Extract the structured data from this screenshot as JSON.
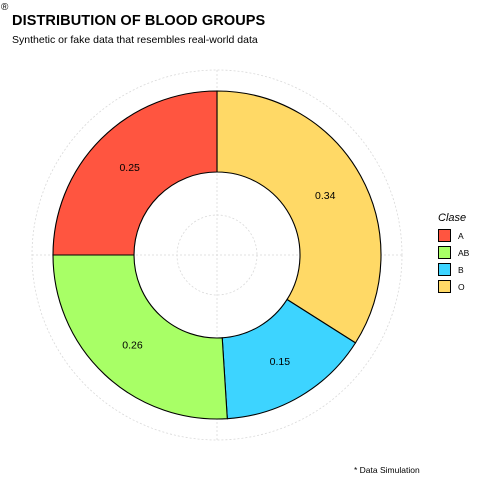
{
  "header": {
    "corner_mark": "®",
    "title": "DISTRIBUTION OF BLOOD GROUPS",
    "subtitle": "Synthetic or fake data that resembles real-world data",
    "caption": "* Data Simulation"
  },
  "chart_data": {
    "type": "pie",
    "variant": "donut",
    "title": "DISTRIBUTION OF BLOOD GROUPS",
    "subtitle": "Synthetic or fake data that resembles real-world data",
    "caption": "* Data Simulation",
    "legend_title": "Clase",
    "legend_position": "right",
    "grid": true,
    "start": "top",
    "direction": "clockwise",
    "categories": [
      "O",
      "B",
      "AB",
      "A"
    ],
    "values": [
      0.34,
      0.15,
      0.26,
      0.25
    ],
    "labels": [
      "0.34",
      "0.15",
      "0.26",
      "0.25"
    ],
    "colors": {
      "O": "#FFD966",
      "B": "#3DD4FF",
      "AB": "#A8FF66",
      "A": "#FF5540"
    },
    "legend_order": [
      "A",
      "AB",
      "B",
      "O"
    ]
  }
}
